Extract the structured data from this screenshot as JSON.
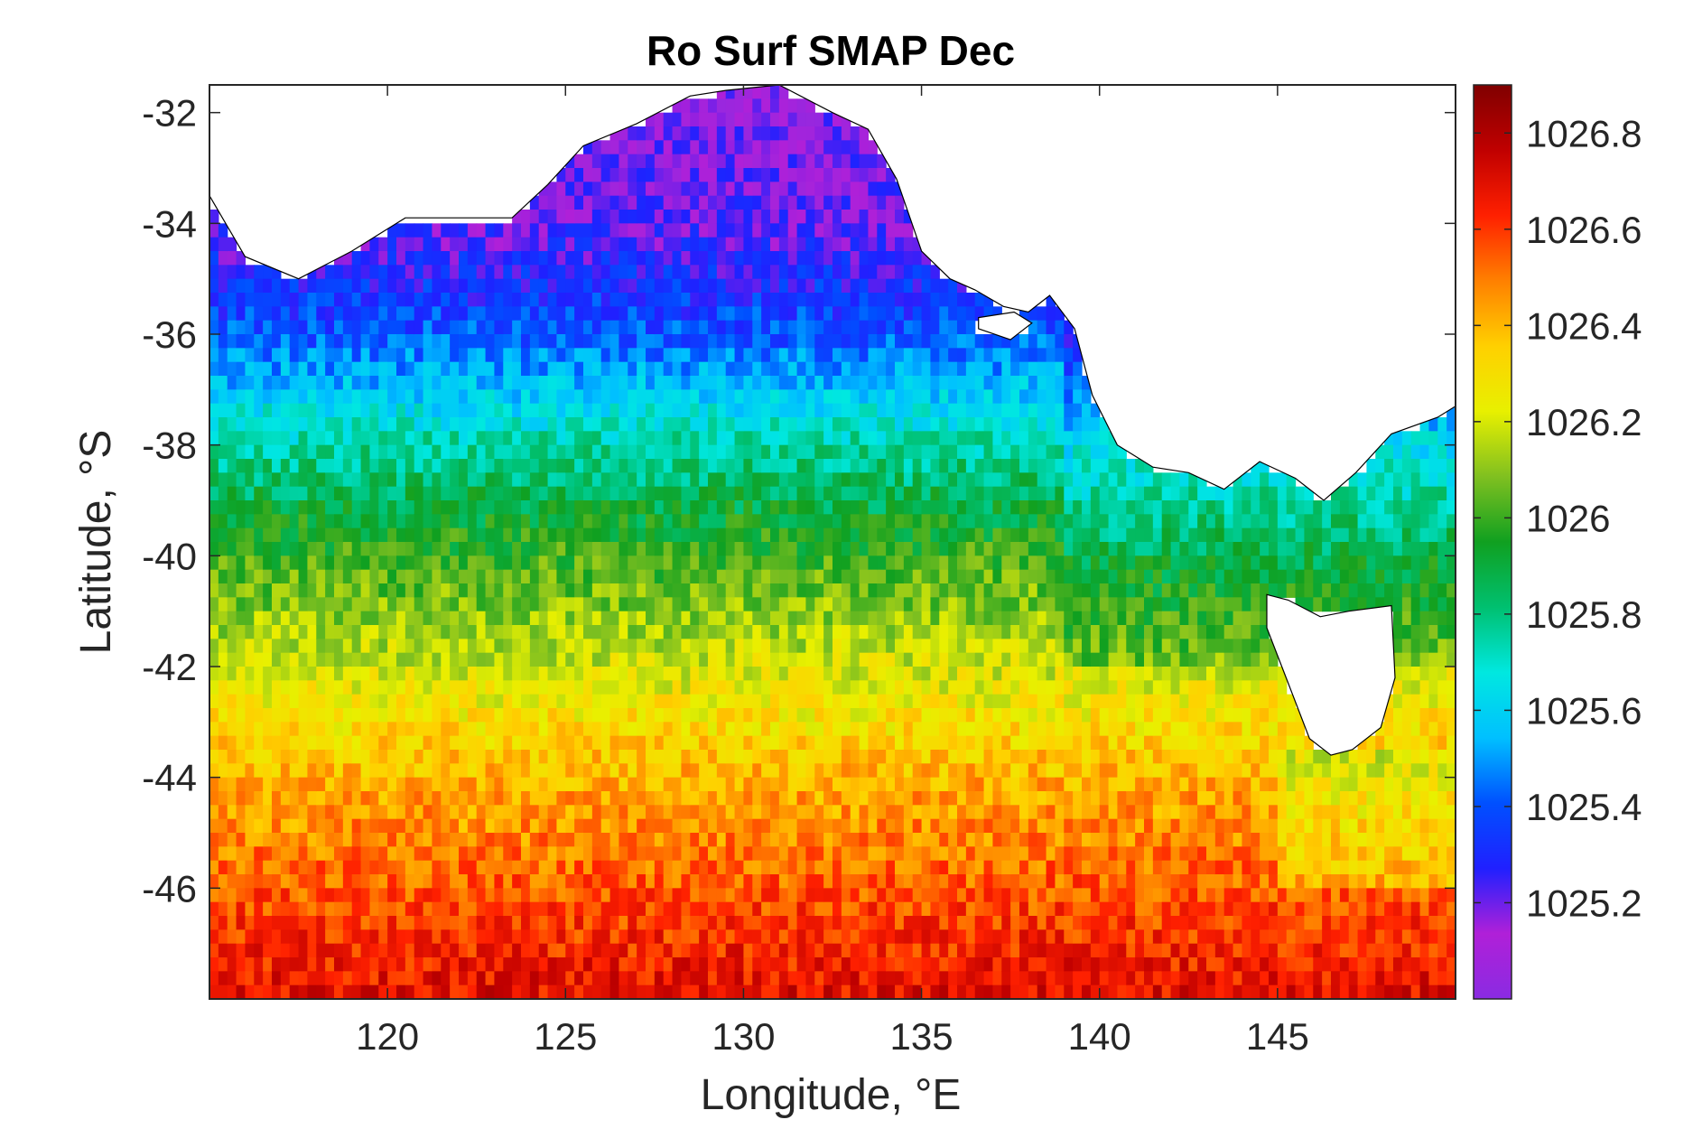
{
  "chart_data": {
    "type": "heatmap",
    "title": "Ro Surf SMAP Dec",
    "xlabel": "Longitude, °E",
    "ylabel": "Latitude, °S",
    "xlim": [
      115,
      150
    ],
    "ylim": [
      -48,
      -31.5
    ],
    "x_ticks": [
      120,
      125,
      130,
      135,
      140,
      145
    ],
    "x_tick_labels": [
      "120",
      "125",
      "130",
      "135",
      "140",
      "145"
    ],
    "y_ticks": [
      -32,
      -34,
      -36,
      -38,
      -40,
      -42,
      -44,
      -46
    ],
    "y_tick_labels": [
      "-32",
      "-34",
      "-36",
      "-38",
      "-40",
      "-42",
      "-44",
      "-46"
    ],
    "colorbar": {
      "min": 1025.0,
      "max": 1026.9,
      "ticks": [
        1025.2,
        1025.4,
        1025.6,
        1025.8,
        1026.0,
        1026.2,
        1026.4,
        1026.6,
        1026.8
      ],
      "tick_labels": [
        "1025.2",
        "1025.4",
        "1025.6",
        "1025.8",
        "1026",
        "1026.2",
        "1026.4",
        "1026.6",
        "1026.8"
      ],
      "colormap": [
        "#8a2be2",
        "#b020d8",
        "#2020ff",
        "#0050ff",
        "#00c0ff",
        "#00e8e0",
        "#00c070",
        "#10a020",
        "#80c020",
        "#e8f000",
        "#ffd000",
        "#ff8000",
        "#ff2000",
        "#c00000",
        "#800000"
      ]
    },
    "value_field": {
      "description_levels_by_latitude": [
        {
          "lat": -32,
          "value": 1025.15
        },
        {
          "lat": -34,
          "value": 1025.2
        },
        {
          "lat": -36,
          "value": 1025.4
        },
        {
          "lat": -38,
          "value": 1025.75
        },
        {
          "lat": -40,
          "value": 1026.0
        },
        {
          "lat": -42,
          "value": 1026.2
        },
        {
          "lat": -44,
          "value": 1026.4
        },
        {
          "lat": -46,
          "value": 1026.55
        },
        {
          "lat": -48,
          "value": 1026.7
        }
      ]
    },
    "grid": false
  }
}
